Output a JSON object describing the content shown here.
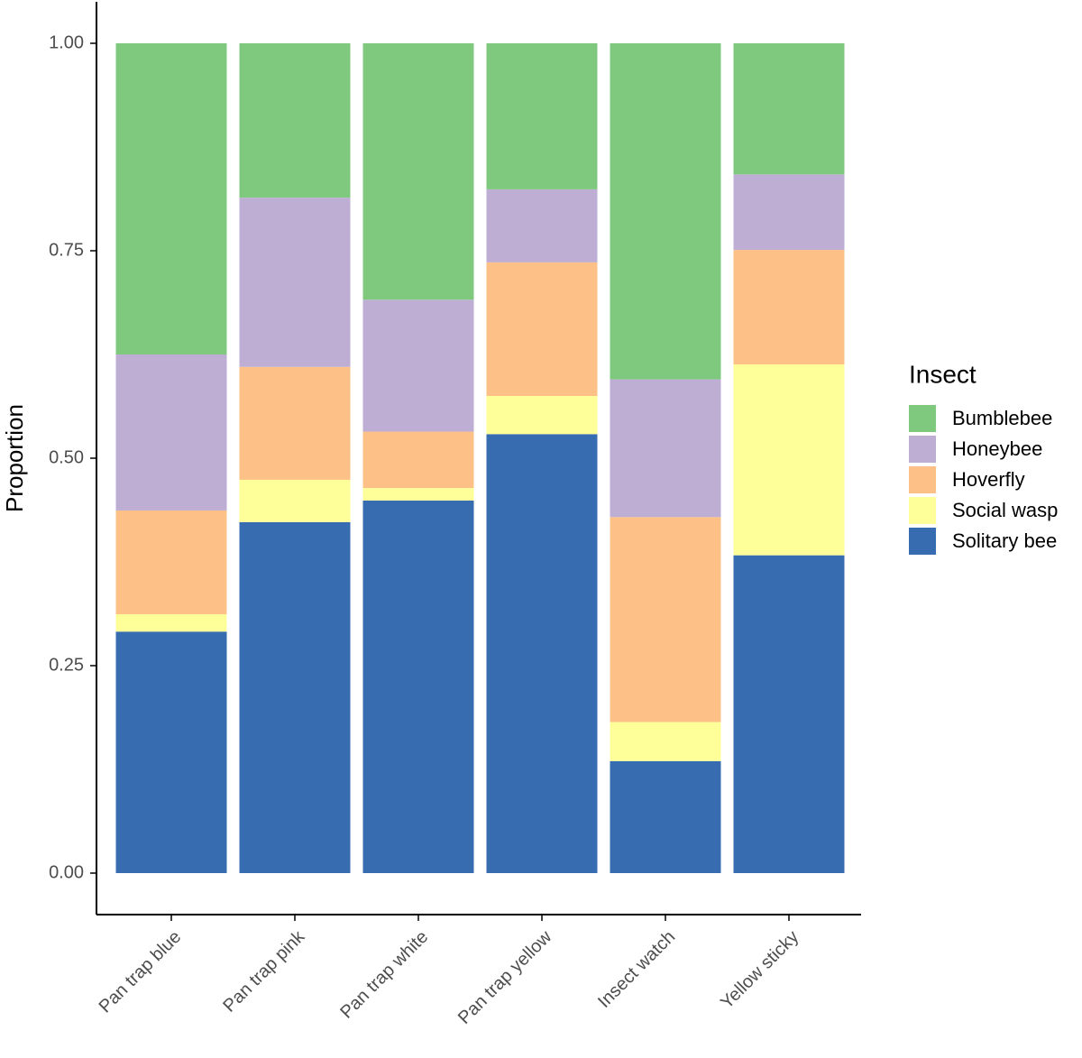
{
  "chart_data": {
    "type": "stacked_bar",
    "y_label": "Proportion",
    "legend_title": "Insect",
    "legend_position": "right",
    "categories": [
      "Pan trap blue",
      "Pan trap pink",
      "Pan trap white",
      "Pan trap yellow",
      "Insect watch",
      "Yellow sticky"
    ],
    "series": [
      {
        "name": "Bumblebee",
        "color": "#7fc97f",
        "values": [
          0.375,
          0.186,
          0.309,
          0.176,
          0.405,
          0.158
        ]
      },
      {
        "name": "Honeybee",
        "color": "#beaed4",
        "values": [
          0.188,
          0.204,
          0.159,
          0.088,
          0.166,
          0.091
        ]
      },
      {
        "name": "Hoverfly",
        "color": "#fdc086",
        "values": [
          0.125,
          0.136,
          0.068,
          0.161,
          0.247,
          0.138
        ]
      },
      {
        "name": "Social wasp",
        "color": "#ffff99",
        "values": [
          0.021,
          0.051,
          0.015,
          0.046,
          0.047,
          0.23
        ]
      },
      {
        "name": "Solitary bee",
        "color": "#386cb0",
        "values": [
          0.291,
          0.423,
          0.449,
          0.529,
          0.135,
          0.383
        ]
      }
    ],
    "ylim": [
      -0.05,
      1.05
    ],
    "yticks": [
      {
        "value": 0,
        "label": "0.00"
      },
      {
        "value": 0.25,
        "label": "0.25"
      },
      {
        "value": 0.5,
        "label": "0.50"
      },
      {
        "value": 0.75,
        "label": "0.75"
      },
      {
        "value": 1,
        "label": "1.00"
      }
    ]
  }
}
